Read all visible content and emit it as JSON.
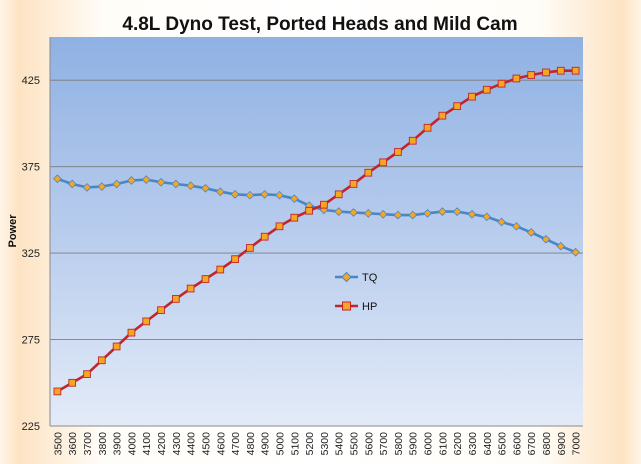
{
  "chart_data": {
    "type": "line",
    "title": "4.8L Dyno Test, Ported Heads and Mild Cam",
    "xlabel": "",
    "ylabel": "Power",
    "ylim": [
      225,
      450
    ],
    "yticks": [
      225,
      275,
      325,
      375,
      425
    ],
    "grid": true,
    "legend": "center-right",
    "categories": [
      3500,
      3600,
      3700,
      3800,
      3900,
      4000,
      4100,
      4200,
      4300,
      4400,
      4500,
      4600,
      4700,
      4800,
      4900,
      5000,
      5100,
      5200,
      5300,
      5400,
      5500,
      5600,
      5700,
      5800,
      5900,
      6000,
      6100,
      6200,
      6300,
      6400,
      6500,
      6600,
      6700,
      6800,
      6900,
      7000
    ],
    "series": [
      {
        "name": "TQ",
        "color": "#4a86c5",
        "marker_color": "#f5a623",
        "marker": "diamond",
        "values": [
          368,
          365,
          363,
          363.5,
          365,
          367,
          367.5,
          366,
          365,
          364,
          362.5,
          360.5,
          359,
          358.5,
          359,
          358.5,
          356.5,
          352.5,
          350,
          349,
          348.5,
          348,
          347.5,
          347,
          347,
          348,
          349,
          349,
          347.5,
          346,
          343,
          340.5,
          337,
          333,
          329,
          325.5
        ]
      },
      {
        "name": "HP",
        "color": "#c0262c",
        "marker_color": "#f5a623",
        "marker": "square",
        "values": [
          245,
          250,
          255,
          263,
          271,
          279,
          285.5,
          292,
          298.5,
          304.5,
          310,
          315.5,
          321.5,
          328,
          334.5,
          340.5,
          345.5,
          349.5,
          353,
          359,
          365,
          371.5,
          377.5,
          383.5,
          390,
          397.5,
          404.5,
          410,
          415.5,
          419.5,
          423,
          426,
          428,
          429.5,
          430.5,
          430.5
        ]
      }
    ]
  }
}
